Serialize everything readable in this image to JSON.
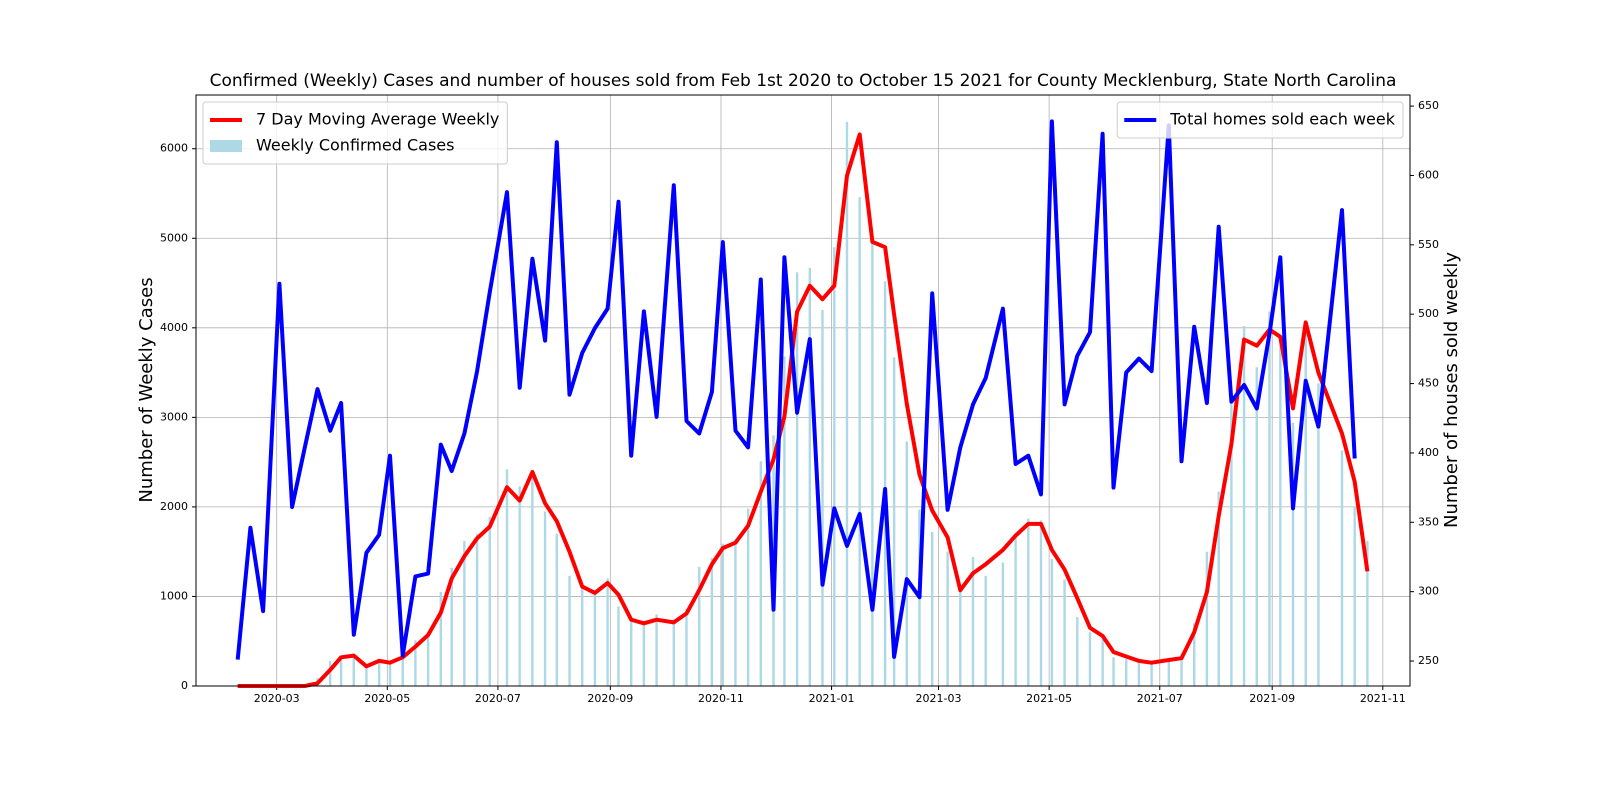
{
  "chart_data": {
    "type": "combo",
    "title": "Confirmed (Weekly) Cases and number of houses sold from Feb 1st 2020 to October 15 2021 for County Mecklenburg, State North Carolina",
    "ylabel": "Number of Weekly Cases",
    "y2label": "Number of houses sold weekly",
    "x": [
      "2020-02",
      "2020-02",
      "2020-02",
      "2020-03",
      "2020-03",
      "2020-03",
      "2020-03",
      "2020-03",
      "2020-04",
      "2020-04",
      "2020-04",
      "2020-04",
      "2020-05",
      "2020-05",
      "2020-05",
      "2020-05",
      "2020-05",
      "2020-06",
      "2020-06",
      "2020-06",
      "2020-06",
      "2020-07",
      "2020-07",
      "2020-07",
      "2020-07",
      "2020-08",
      "2020-08",
      "2020-08",
      "2020-08",
      "2020-08",
      "2020-09",
      "2020-09",
      "2020-09",
      "2020-09",
      "2020-10",
      "2020-10",
      "2020-10",
      "2020-10",
      "2020-11",
      "2020-11",
      "2020-11",
      "2020-11",
      "2020-11",
      "2020-12",
      "2020-12",
      "2020-12",
      "2020-12",
      "2021-01",
      "2021-01",
      "2021-01",
      "2021-01",
      "2021-01",
      "2021-02",
      "2021-02",
      "2021-02",
      "2021-02",
      "2021-03",
      "2021-03",
      "2021-03",
      "2021-03",
      "2021-04",
      "2021-04",
      "2021-04",
      "2021-04",
      "2021-05",
      "2021-05",
      "2021-05",
      "2021-05",
      "2021-05",
      "2021-06",
      "2021-06",
      "2021-06",
      "2021-06",
      "2021-07",
      "2021-07",
      "2021-07",
      "2021-07",
      "2021-08",
      "2021-08",
      "2021-08",
      "2021-08",
      "2021-08",
      "2021-09",
      "2021-09",
      "2021-09",
      "2021-09",
      "2021-10",
      "2021-10",
      "2021-10"
    ],
    "series": [
      {
        "name": "7 Day Moving Average Weekly",
        "type": "line",
        "color": "red",
        "axis": "y",
        "values": [
          0,
          0,
          0,
          0,
          0,
          0,
          30,
          180,
          320,
          340,
          220,
          280,
          260,
          320,
          440,
          570,
          820,
          1200,
          1450,
          1650,
          1780,
          2220,
          2070,
          2390,
          2040,
          1840,
          1500,
          1110,
          1040,
          1150,
          1020,
          740,
          700,
          740,
          710,
          810,
          1070,
          1360,
          1540,
          1600,
          1790,
          2170,
          2530,
          3010,
          4180,
          4470,
          4320,
          4470,
          5700,
          6160,
          4960,
          4900,
          4150,
          3150,
          2360,
          1960,
          1660,
          1070,
          1260,
          1360,
          1520,
          1680,
          1810,
          1810,
          1520,
          1300,
          980,
          650,
          560,
          380,
          330,
          280,
          260,
          290,
          310,
          600,
          1050,
          1900,
          2700,
          3870,
          3800,
          3980,
          3900,
          3100,
          4060,
          3500,
          2820,
          2280,
          1280
        ]
      },
      {
        "name": "Weekly Confirmed Cases",
        "type": "bar",
        "color": "lightblue",
        "axis": "y",
        "values": [
          0,
          0,
          0,
          0,
          0,
          10,
          90,
          280,
          340,
          330,
          210,
          290,
          250,
          360,
          510,
          600,
          1050,
          1320,
          1620,
          1700,
          1890,
          2420,
          2230,
          2380,
          1950,
          1700,
          1230,
          1100,
          1060,
          1200,
          890,
          720,
          690,
          800,
          700,
          860,
          1330,
          1430,
          1590,
          1640,
          1980,
          2510,
          2800,
          3680,
          4620,
          4670,
          4200,
          4900,
          6300,
          5460,
          4990,
          4520,
          3670,
          2730,
          1970,
          1720,
          1500,
          1080,
          1440,
          1230,
          1380,
          1700,
          1870,
          1850,
          1420,
          1190,
          770,
          600,
          520,
          320,
          300,
          260,
          270,
          300,
          360,
          700,
          1500,
          2170,
          3310,
          4020,
          3560,
          4180,
          3840,
          2940,
          4010,
          3380,
          2630,
          2000,
          1620
        ]
      },
      {
        "name": "Total homes sold each week",
        "type": "line",
        "color": "blue",
        "axis": "y2",
        "values": [
          251,
          346,
          286,
          522,
          361,
          404,
          446,
          416,
          436,
          269,
          328,
          341,
          398,
          254,
          311,
          313,
          406,
          387,
          414,
          459,
          516,
          588,
          447,
          540,
          481,
          624,
          442,
          472,
          490,
          504,
          581,
          398,
          502,
          426,
          593,
          423,
          414,
          444,
          552,
          416,
          404,
          525,
          287,
          541,
          429,
          482,
          305,
          360,
          333,
          356,
          287,
          374,
          253,
          309,
          296,
          515,
          359,
          404,
          435,
          454,
          504,
          392,
          398,
          370,
          639,
          435,
          470,
          487,
          630,
          375,
          458,
          468,
          459,
          636,
          394,
          491,
          436,
          563,
          437,
          449,
          432,
          486,
          541,
          360,
          452,
          419,
          575,
          396,
          null
        ]
      }
    ],
    "xlim": [
      "2020-01",
      "2021-11"
    ],
    "xticks": [
      "2020-03",
      "2020-05",
      "2020-07",
      "2020-09",
      "2020-11",
      "2021-01",
      "2021-03",
      "2021-05",
      "2021-07",
      "2021-09",
      "2021-11"
    ],
    "ylim": [
      0,
      6600
    ],
    "yticks": [
      0,
      1000,
      2000,
      3000,
      4000,
      5000,
      6000
    ],
    "y2lim": [
      232,
      658
    ],
    "y2ticks": [
      250,
      300,
      350,
      400,
      450,
      500,
      550,
      600,
      650
    ],
    "grid": true,
    "legend_loc": "upper left",
    "legend2_loc": "upper right"
  }
}
